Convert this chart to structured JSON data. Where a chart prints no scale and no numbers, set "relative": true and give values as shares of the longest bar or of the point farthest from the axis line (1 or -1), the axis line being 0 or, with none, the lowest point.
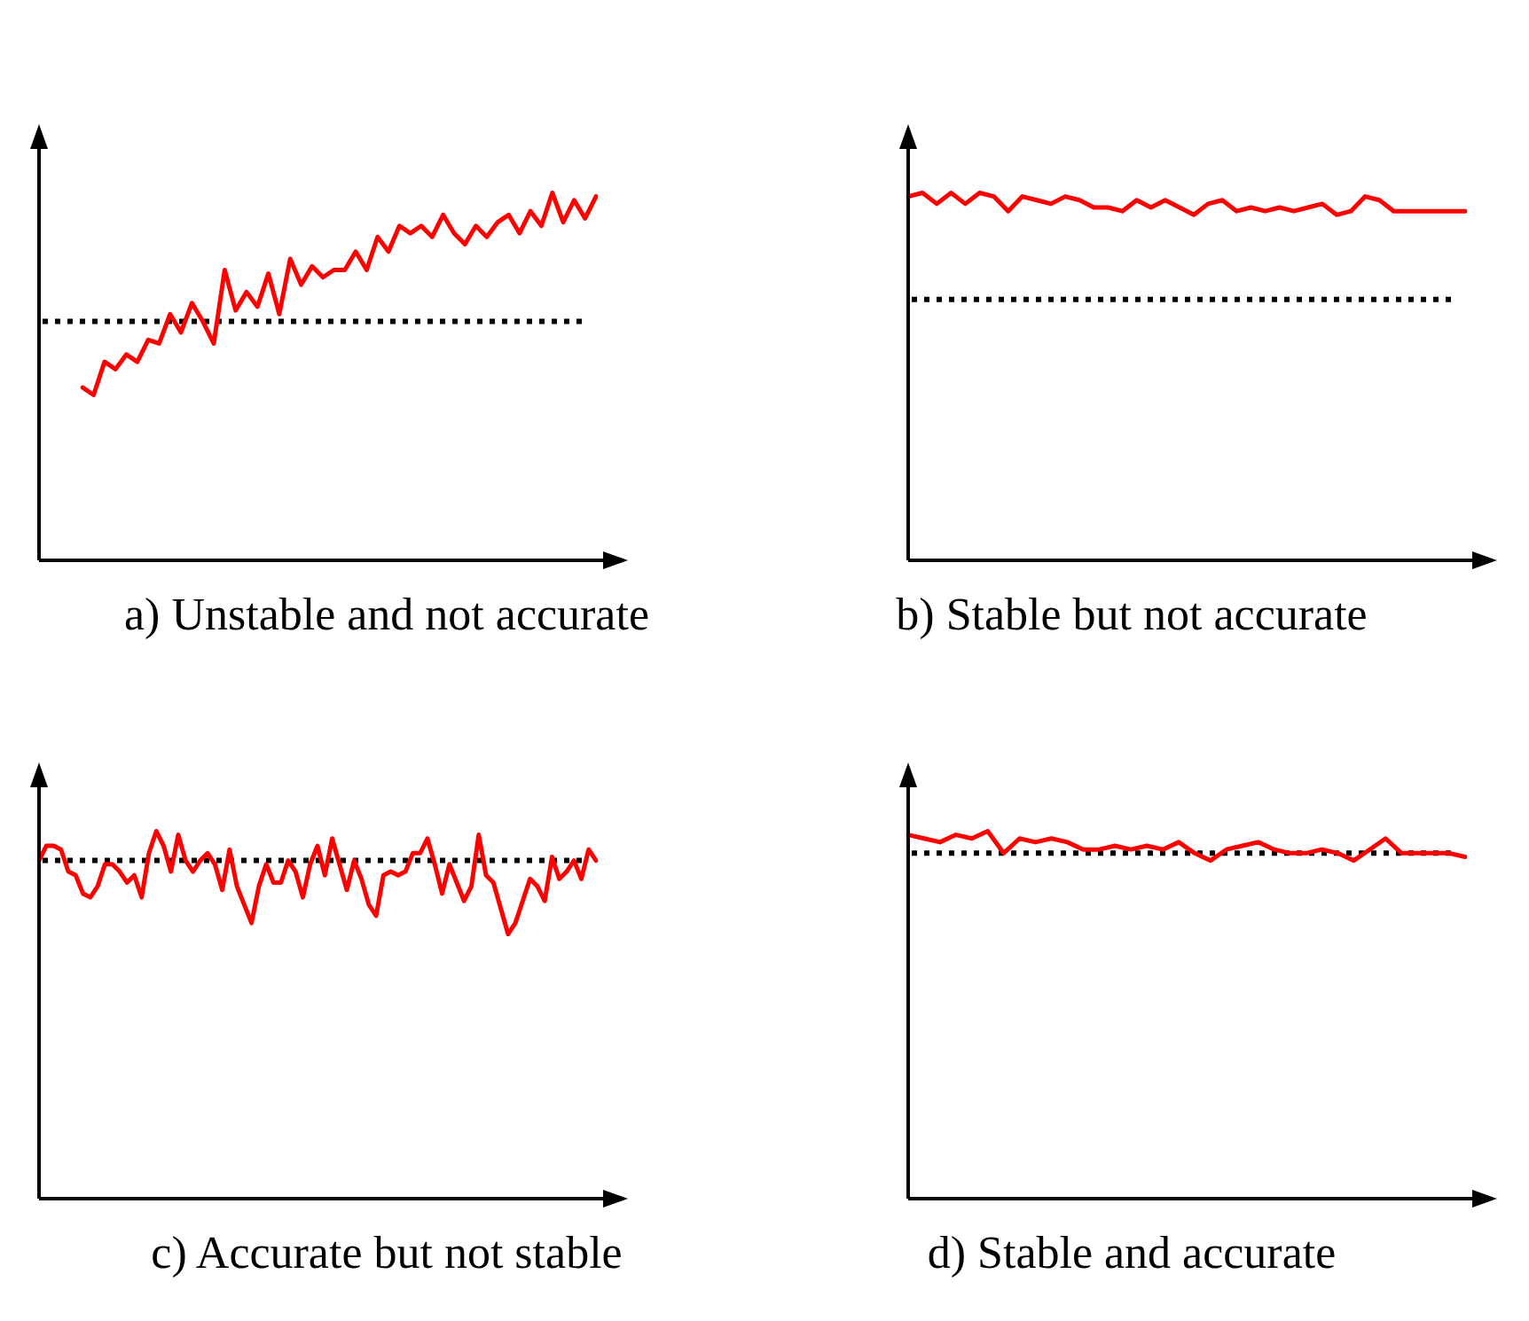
{
  "chart_data": [
    {
      "type": "line",
      "title": "a) Unstable and not accurate",
      "relative": true,
      "grid": false,
      "legend": false,
      "tick_labels": false,
      "marker": "none",
      "line_style": "solid",
      "categories": [
        null,
        null,
        null,
        null,
        null,
        null,
        null,
        null,
        null,
        null,
        null,
        null,
        null,
        null,
        null,
        null,
        null,
        null,
        null,
        null,
        null,
        null,
        null,
        null,
        null,
        null,
        null,
        null,
        null,
        null,
        null,
        null,
        null,
        null,
        null,
        null,
        null,
        null,
        null,
        null,
        null,
        null,
        null,
        null,
        null,
        null,
        null,
        null,
        null,
        null,
        null,
        null
      ],
      "series": [
        {
          "color": "#ff0000",
          "values": [
            null,
            null,
            null,
            null,
            0.47,
            0.45,
            0.54,
            0.52,
            0.56,
            0.54,
            0.6,
            0.59,
            0.67,
            0.62,
            0.7,
            0.65,
            0.59,
            0.79,
            0.68,
            0.73,
            0.69,
            0.78,
            0.67,
            0.82,
            0.75,
            0.8,
            0.77,
            0.79,
            0.79,
            0.84,
            0.79,
            0.88,
            0.84,
            0.91,
            0.89,
            0.91,
            0.88,
            0.94,
            0.89,
            0.86,
            0.91,
            0.88,
            0.92,
            0.94,
            0.89,
            0.95,
            0.91,
            1,
            0.92,
            0.98,
            0.93,
            0.99
          ]
        }
      ],
      "ref_lines": [
        {
          "axis": "y",
          "value": 0.65,
          "color": "#000000",
          "line_style": "dotted"
        }
      ]
    },
    {
      "type": "line",
      "title": "b) Stable but not accurate",
      "relative": true,
      "grid": false,
      "legend": false,
      "tick_labels": false,
      "marker": "none",
      "line_style": "solid",
      "categories": [
        null,
        null,
        null,
        null,
        null,
        null,
        null,
        null,
        null,
        null,
        null,
        null,
        null,
        null,
        null,
        null,
        null,
        null,
        null,
        null,
        null,
        null,
        null,
        null,
        null,
        null,
        null,
        null,
        null,
        null,
        null,
        null,
        null,
        null,
        null,
        null,
        null,
        null,
        null,
        null
      ],
      "series": [
        {
          "color": "#ff0000",
          "values": [
            0.99,
            1,
            0.97,
            1,
            0.97,
            1,
            0.99,
            0.95,
            0.99,
            0.98,
            0.97,
            0.99,
            0.98,
            0.96,
            0.96,
            0.95,
            0.98,
            0.96,
            0.98,
            0.96,
            0.94,
            0.97,
            0.98,
            0.95,
            0.96,
            0.95,
            0.96,
            0.95,
            0.96,
            0.97,
            0.94,
            0.95,
            0.99,
            0.98,
            0.95,
            0.95,
            0.95,
            0.95,
            0.95,
            0.95
          ]
        }
      ],
      "ref_lines": [
        {
          "axis": "y",
          "value": 0.71,
          "color": "#000000",
          "line_style": "dotted"
        }
      ]
    },
    {
      "type": "line",
      "title": "c) Accurate but not stable",
      "relative": true,
      "grid": false,
      "legend": false,
      "tick_labels": false,
      "marker": "none",
      "line_style": "solid",
      "categories": [
        null,
        null,
        null,
        null,
        null,
        null,
        null,
        null,
        null,
        null,
        null,
        null,
        null,
        null,
        null,
        null,
        null,
        null,
        null,
        null,
        null,
        null,
        null,
        null,
        null,
        null,
        null,
        null,
        null,
        null,
        null,
        null,
        null,
        null,
        null,
        null,
        null,
        null,
        null,
        null,
        null,
        null,
        null,
        null,
        null,
        null,
        null,
        null,
        null,
        null,
        null,
        null,
        null,
        null,
        null,
        null,
        null,
        null,
        null,
        null,
        null,
        null,
        null,
        null,
        null,
        null,
        null,
        null,
        null,
        null,
        null,
        null,
        null,
        null,
        null,
        null,
        null
      ],
      "series": [
        {
          "color": "#ff0000",
          "values": [
            0.92,
            0.96,
            0.96,
            0.95,
            0.89,
            0.88,
            0.83,
            0.82,
            0.85,
            0.91,
            0.91,
            0.89,
            0.86,
            0.88,
            0.82,
            0.94,
            1,
            0.96,
            0.89,
            0.99,
            0.92,
            0.89,
            0.92,
            0.94,
            0.91,
            0.84,
            0.95,
            0.85,
            0.8,
            0.75,
            0.85,
            0.91,
            0.86,
            0.86,
            0.92,
            0.89,
            0.82,
            0.91,
            0.96,
            0.88,
            0.98,
            0.91,
            0.84,
            0.92,
            0.87,
            0.8,
            0.77,
            0.88,
            0.89,
            0.88,
            0.89,
            0.94,
            0.94,
            0.98,
            0.91,
            0.83,
            0.91,
            0.86,
            0.81,
            0.85,
            0.99,
            0.88,
            0.86,
            0.79,
            0.72,
            0.75,
            0.81,
            0.87,
            0.85,
            0.81,
            0.93,
            0.87,
            0.89,
            0.92,
            0.87,
            0.95,
            0.92
          ]
        }
      ],
      "ref_lines": [
        {
          "axis": "y",
          "value": 0.92,
          "color": "#000000",
          "line_style": "dotted"
        }
      ]
    },
    {
      "type": "line",
      "title": "d) Stable and accurate",
      "relative": true,
      "grid": false,
      "legend": false,
      "tick_labels": false,
      "marker": "none",
      "line_style": "solid",
      "categories": [
        null,
        null,
        null,
        null,
        null,
        null,
        null,
        null,
        null,
        null,
        null,
        null,
        null,
        null,
        null,
        null,
        null,
        null,
        null,
        null,
        null,
        null,
        null,
        null,
        null,
        null,
        null,
        null,
        null,
        null,
        null,
        null,
        null,
        null,
        null,
        null
      ],
      "series": [
        {
          "color": "#ff0000",
          "values": [
            0.99,
            0.98,
            0.97,
            0.99,
            0.98,
            1,
            0.94,
            0.98,
            0.97,
            0.98,
            0.97,
            0.95,
            0.95,
            0.96,
            0.95,
            0.96,
            0.95,
            0.97,
            0.94,
            0.92,
            0.95,
            0.96,
            0.97,
            0.95,
            0.94,
            0.94,
            0.95,
            0.94,
            0.92,
            0.95,
            0.98,
            0.94,
            0.94,
            0.94,
            0.94,
            0.93
          ]
        }
      ],
      "ref_lines": [
        {
          "axis": "y",
          "value": 0.94,
          "color": "#000000",
          "line_style": "dotted"
        }
      ]
    }
  ]
}
